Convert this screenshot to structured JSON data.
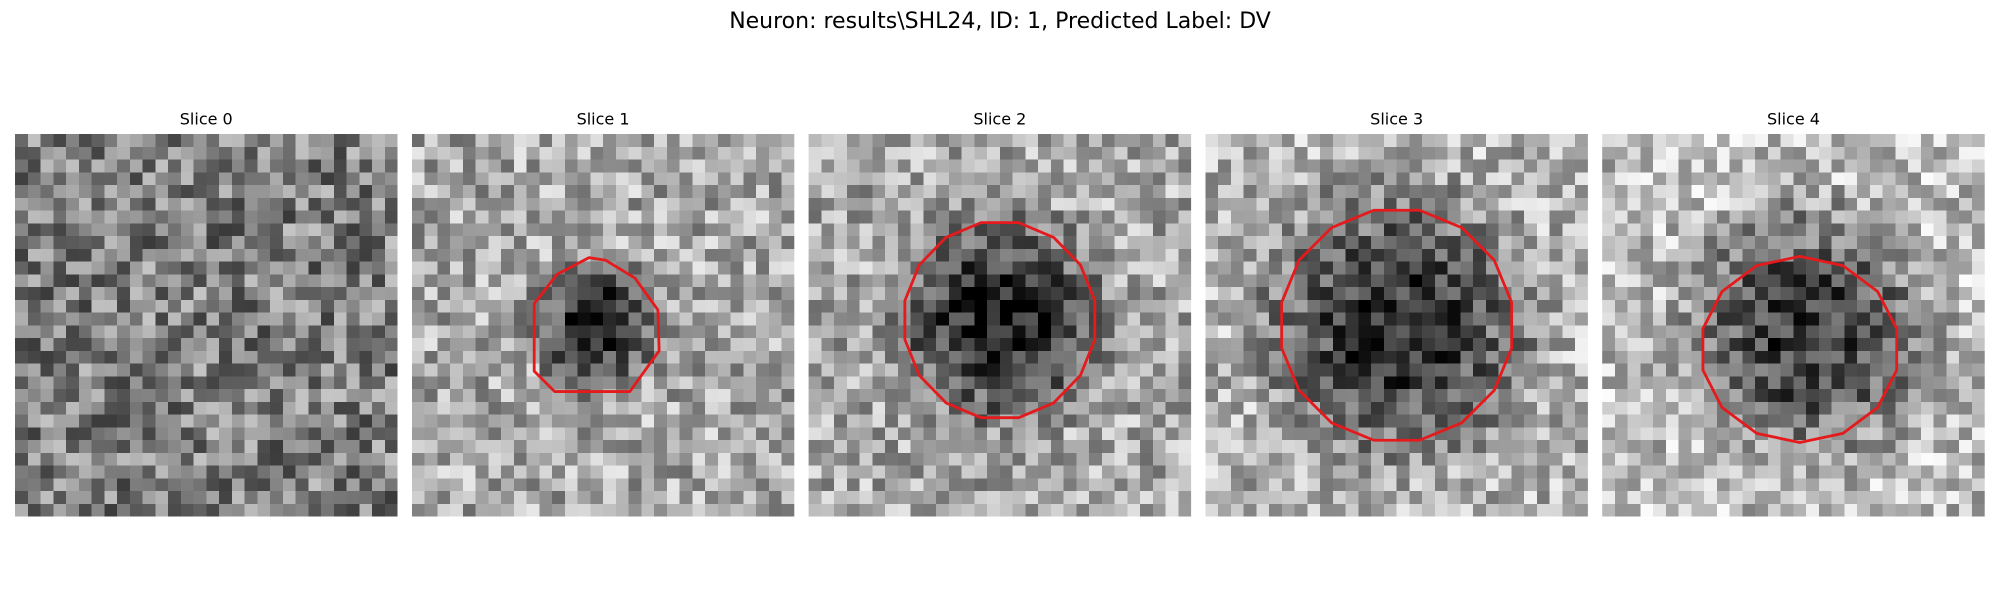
{
  "title": "Neuron: results\\SHL24, ID: 1, Predicted Label: DV",
  "panels": [
    {
      "title": "Slice 0"
    },
    {
      "title": "Slice 1"
    },
    {
      "title": "Slice 2"
    },
    {
      "title": "Slice 3"
    },
    {
      "title": "Slice 4"
    }
  ]
}
